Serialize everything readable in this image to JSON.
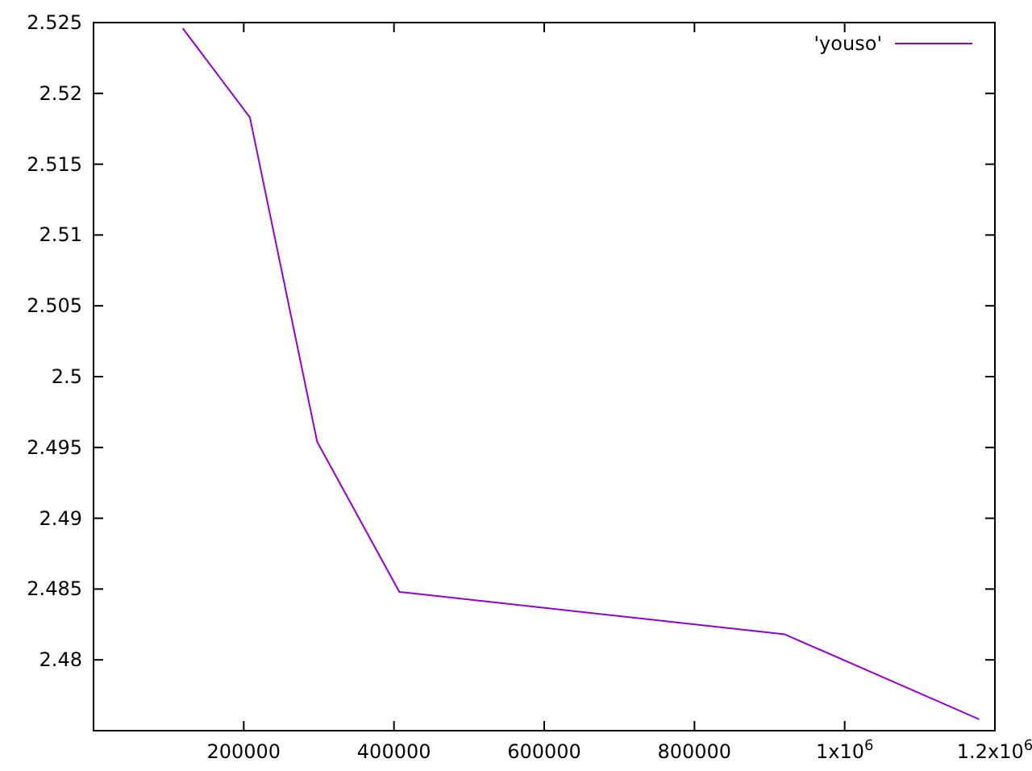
{
  "chart_data": {
    "type": "line",
    "x": [
      118800,
      208200,
      297700,
      407200,
      920300,
      1179000
    ],
    "series": [
      {
        "name": "'youso'",
        "color": "#9400d3",
        "values": [
          2.5246,
          2.5183,
          2.4954,
          2.4848,
          2.4818,
          2.4758
        ]
      }
    ],
    "xlim": [
      0,
      1200000
    ],
    "xticks": [
      200000,
      400000,
      600000,
      800000,
      {
        "value": 1000000,
        "label": "1x10$^{6}$"
      },
      {
        "value": 1200000,
        "label": "1.2x10$^{6}$"
      }
    ],
    "ylim": [
      2.475,
      2.525
    ],
    "yticks": [
      2.48,
      2.485,
      2.49,
      2.495,
      2.5,
      2.505,
      2.51,
      2.515,
      2.52,
      2.525
    ],
    "legend": "top right",
    "grid": false,
    "marker": "none",
    "line_style": "solid"
  }
}
